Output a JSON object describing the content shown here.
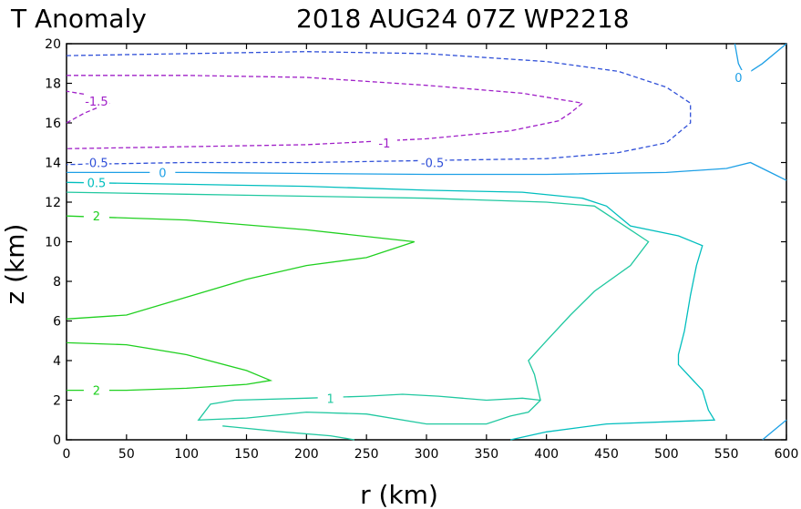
{
  "chart_data": {
    "type": "contour",
    "title_left": "T Anomaly",
    "title_right": "2018 AUG24 07Z   WP2218",
    "xlabel": "r (km)",
    "ylabel": "z (km)",
    "xlim": [
      0,
      600
    ],
    "ylim": [
      0,
      20
    ],
    "xticks": [
      0,
      50,
      100,
      150,
      200,
      250,
      300,
      350,
      400,
      450,
      500,
      550,
      600
    ],
    "yticks": [
      0,
      2,
      4,
      6,
      8,
      10,
      12,
      14,
      16,
      18,
      20
    ],
    "colors": {
      "neg_1_5": "#a020c8",
      "neg_1": "#a020c8",
      "neg_0_5": "#3050d8",
      "zero": "#1ea0e6",
      "pos_0_5": "#00bebe",
      "pos_1": "#20c8a0",
      "pos_2": "#20d020"
    },
    "contours": [
      {
        "name": "contour-neg-1-5",
        "label": "-1.5",
        "level": -1.5,
        "color": "#a020c8",
        "dashed": true,
        "points": [
          [
            0,
            16.0
          ],
          [
            15,
            16.5
          ],
          [
            35,
            17.0
          ],
          [
            20,
            17.4
          ],
          [
            0,
            17.6
          ]
        ],
        "label_at": [
          25,
          17.1
        ]
      },
      {
        "name": "contour-neg-1",
        "label": "-1",
        "level": -1,
        "color": "#a020c8",
        "dashed": true,
        "points": [
          [
            0,
            18.4
          ],
          [
            100,
            18.4
          ],
          [
            200,
            18.3
          ],
          [
            300,
            17.9
          ],
          [
            380,
            17.5
          ],
          [
            430,
            17.0
          ],
          [
            420,
            16.5
          ],
          [
            410,
            16.1
          ],
          [
            370,
            15.6
          ],
          [
            300,
            15.2
          ],
          [
            200,
            14.9
          ],
          [
            100,
            14.8
          ],
          [
            0,
            14.7
          ]
        ],
        "label_at": [
          265,
          15.0
        ]
      },
      {
        "name": "contour-neg-0-5",
        "label": "-0.5",
        "level": -0.5,
        "color": "#3050d8",
        "dashed": true,
        "points": [
          [
            0,
            19.4
          ],
          [
            100,
            19.5
          ],
          [
            200,
            19.6
          ],
          [
            300,
            19.5
          ],
          [
            400,
            19.1
          ],
          [
            460,
            18.6
          ],
          [
            500,
            17.8
          ],
          [
            520,
            17.0
          ],
          [
            520,
            16.0
          ],
          [
            500,
            15.0
          ],
          [
            460,
            14.5
          ],
          [
            400,
            14.2
          ],
          [
            300,
            14.1
          ],
          [
            200,
            14.0
          ],
          [
            100,
            14.0
          ],
          [
            0,
            13.9
          ]
        ],
        "label_at": [
          25,
          14.0
        ]
      },
      {
        "name": "contour-neg-0-5-second-label",
        "label": "-0.5",
        "level": -0.5,
        "color": "#3050d8",
        "dashed": true,
        "points": [],
        "label_at": [
          305,
          14.0
        ]
      },
      {
        "name": "contour-zero-main",
        "label": "0",
        "level": 0,
        "color": "#1ea0e6",
        "dashed": false,
        "points": [
          [
            0,
            13.5
          ],
          [
            100,
            13.5
          ],
          [
            200,
            13.45
          ],
          [
            300,
            13.4
          ],
          [
            400,
            13.4
          ],
          [
            500,
            13.5
          ],
          [
            550,
            13.7
          ],
          [
            570,
            14.0
          ],
          [
            590,
            13.4
          ],
          [
            600,
            13.1
          ]
        ],
        "label_at": [
          80,
          13.5
        ]
      },
      {
        "name": "contour-zero-corner-top",
        "label": "0",
        "level": 0,
        "color": "#1ea0e6",
        "dashed": false,
        "points": [
          [
            557,
            20.0
          ],
          [
            560,
            19.0
          ],
          [
            565,
            18.4
          ],
          [
            580,
            19.0
          ],
          [
            600,
            20.0
          ]
        ],
        "label_at": [
          560,
          18.3
        ]
      },
      {
        "name": "contour-zero-corner-bottom",
        "label": "",
        "level": 0,
        "color": "#1ea0e6",
        "dashed": false,
        "points": [
          [
            580,
            0.0
          ],
          [
            592,
            0.6
          ],
          [
            600,
            1.0
          ]
        ],
        "label_at": null
      },
      {
        "name": "contour-pos-0-5",
        "label": "0.5",
        "level": 0.5,
        "color": "#00bebe",
        "dashed": false,
        "points": [
          [
            0,
            13.0
          ],
          [
            100,
            12.9
          ],
          [
            200,
            12.8
          ],
          [
            300,
            12.6
          ],
          [
            380,
            12.5
          ],
          [
            430,
            12.2
          ],
          [
            450,
            11.8
          ],
          [
            470,
            10.8
          ],
          [
            510,
            10.3
          ],
          [
            530,
            9.8
          ],
          [
            525,
            8.8
          ],
          [
            520,
            7.3
          ],
          [
            515,
            5.5
          ],
          [
            510,
            4.3
          ],
          [
            510,
            3.8
          ],
          [
            530,
            2.5
          ],
          [
            535,
            1.5
          ],
          [
            540,
            1.0
          ],
          [
            450,
            0.8
          ],
          [
            400,
            0.4
          ],
          [
            370,
            0.0
          ]
        ],
        "label_at": [
          25,
          13.0
        ]
      },
      {
        "name": "contour-pos-1",
        "label": "1",
        "level": 1,
        "color": "#20c8a0",
        "dashed": false,
        "points": [
          [
            0,
            12.5
          ],
          [
            100,
            12.4
          ],
          [
            200,
            12.3
          ],
          [
            300,
            12.2
          ],
          [
            400,
            12.0
          ],
          [
            440,
            11.8
          ],
          [
            460,
            11.0
          ],
          [
            485,
            10.0
          ],
          [
            470,
            8.8
          ],
          [
            440,
            7.5
          ],
          [
            420,
            6.3
          ],
          [
            400,
            5.0
          ],
          [
            385,
            4.0
          ],
          [
            390,
            3.3
          ],
          [
            395,
            2.0
          ],
          [
            385,
            1.4
          ],
          [
            370,
            1.2
          ],
          [
            350,
            0.8
          ],
          [
            300,
            0.8
          ],
          [
            250,
            1.3
          ],
          [
            200,
            1.4
          ],
          [
            150,
            1.1
          ],
          [
            110,
            1.0
          ],
          [
            120,
            1.8
          ],
          [
            140,
            2.0
          ],
          [
            200,
            2.1
          ],
          [
            250,
            2.2
          ],
          [
            280,
            2.3
          ],
          [
            310,
            2.2
          ],
          [
            350,
            2.0
          ],
          [
            380,
            2.1
          ],
          [
            395,
            2.0
          ]
        ],
        "label_at": [
          220,
          2.1
        ]
      },
      {
        "name": "contour-pos-1-bottom",
        "label": "",
        "level": 1,
        "color": "#20c8a0",
        "dashed": false,
        "points": [
          [
            130,
            0.7
          ],
          [
            180,
            0.4
          ],
          [
            220,
            0.2
          ],
          [
            240,
            0.0
          ]
        ],
        "label_at": null
      },
      {
        "name": "contour-pos-2-upper",
        "label": "2",
        "level": 2,
        "color": "#20d020",
        "dashed": false,
        "points": [
          [
            0,
            11.3
          ],
          [
            100,
            11.1
          ],
          [
            200,
            10.6
          ],
          [
            290,
            10.0
          ],
          [
            250,
            9.2
          ],
          [
            200,
            8.8
          ],
          [
            150,
            8.1
          ],
          [
            100,
            7.2
          ],
          [
            50,
            6.3
          ],
          [
            0,
            6.1
          ]
        ],
        "label_at": [
          25,
          11.3
        ]
      },
      {
        "name": "contour-pos-2-lower",
        "label": "2",
        "level": 2,
        "color": "#20d020",
        "dashed": false,
        "points": [
          [
            0,
            4.9
          ],
          [
            50,
            4.8
          ],
          [
            100,
            4.3
          ],
          [
            150,
            3.5
          ],
          [
            170,
            3.0
          ],
          [
            150,
            2.8
          ],
          [
            100,
            2.6
          ],
          [
            50,
            2.5
          ],
          [
            0,
            2.5
          ]
        ],
        "label_at": [
          25,
          2.5
        ]
      }
    ]
  }
}
